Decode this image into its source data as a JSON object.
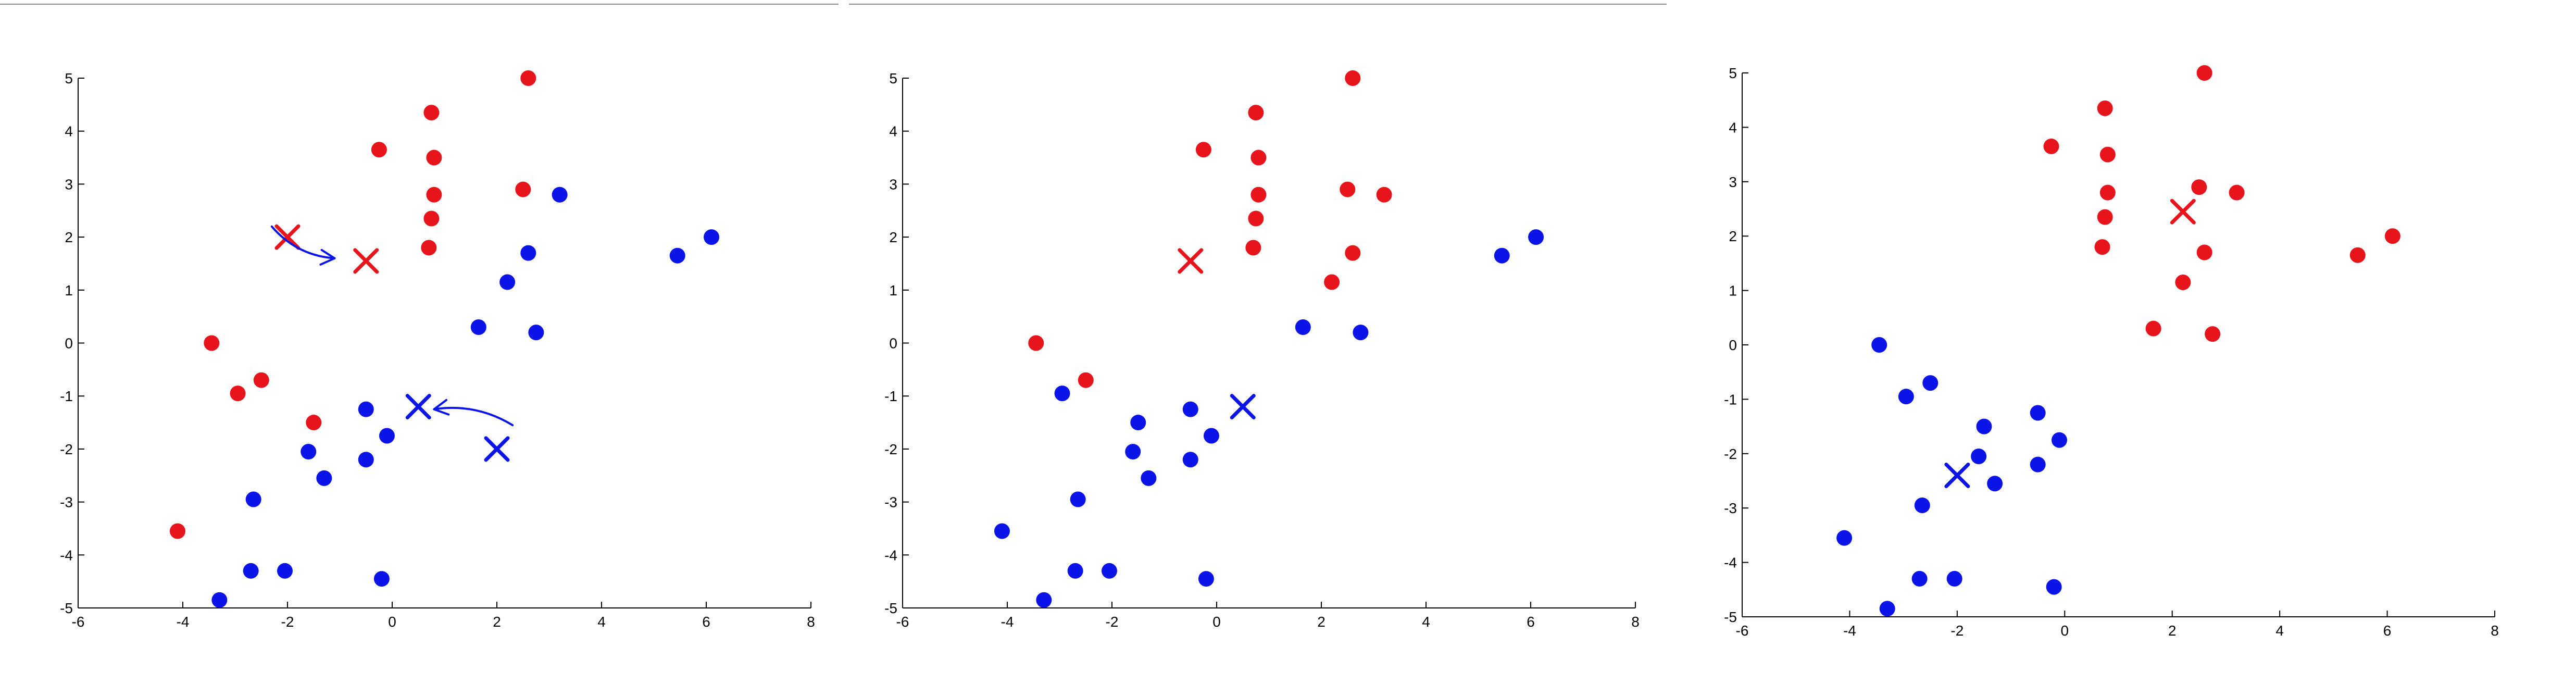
{
  "chart_data": [
    {
      "type": "scatter",
      "title": "",
      "xlabel": "",
      "ylabel": "",
      "xlim": [
        -6,
        8
      ],
      "ylim": [
        -5,
        5
      ],
      "xticks": [
        -6,
        -4,
        -2,
        0,
        2,
        4,
        6,
        8
      ],
      "yticks": [
        -5,
        -4,
        -3,
        -2,
        -1,
        0,
        1,
        2,
        3,
        4,
        5
      ],
      "grid": false,
      "series": [
        {
          "color": "#e8141b",
          "marker": "circle",
          "points": [
            [
              2.6,
              5.0
            ],
            [
              0.75,
              4.35
            ],
            [
              -0.25,
              3.65
            ],
            [
              0.8,
              3.5
            ],
            [
              0.8,
              2.8
            ],
            [
              2.5,
              2.9
            ],
            [
              0.75,
              2.35
            ],
            [
              0.7,
              1.8
            ],
            [
              -3.45,
              0.0
            ],
            [
              -2.95,
              -0.95
            ],
            [
              -2.5,
              -0.7
            ],
            [
              -1.5,
              -1.5
            ],
            [
              -4.1,
              -3.55
            ]
          ]
        },
        {
          "color": "#0a14e8",
          "marker": "circle",
          "points": [
            [
              3.2,
              2.8
            ],
            [
              6.1,
              2.0
            ],
            [
              5.45,
              1.65
            ],
            [
              2.6,
              1.7
            ],
            [
              2.2,
              1.15
            ],
            [
              1.65,
              0.3
            ],
            [
              2.75,
              0.2
            ],
            [
              -0.5,
              -1.25
            ],
            [
              -0.1,
              -1.75
            ],
            [
              -1.6,
              -2.05
            ],
            [
              -0.5,
              -2.2
            ],
            [
              -1.3,
              -2.55
            ],
            [
              -2.65,
              -2.95
            ],
            [
              -2.7,
              -4.3
            ],
            [
              -2.05,
              -4.3
            ],
            [
              -0.2,
              -4.45
            ],
            [
              -3.3,
              -4.85
            ]
          ]
        }
      ],
      "centroids": [
        {
          "color": "#e8141b",
          "x": -2.0,
          "y": 2.0
        },
        {
          "color": "#e8141b",
          "x": -0.5,
          "y": 1.55
        },
        {
          "color": "#0a14e8",
          "x": 0.5,
          "y": -1.2
        },
        {
          "color": "#0a14e8",
          "x": 2.0,
          "y": -2.0
        }
      ],
      "arrows": [
        {
          "color": "#0a14e8",
          "from": [
            -2.3,
            2.2
          ],
          "to": [
            -1.1,
            1.6
          ]
        },
        {
          "color": "#0a14e8",
          "from": [
            2.3,
            -1.55
          ],
          "to": [
            0.8,
            -1.25
          ]
        }
      ]
    },
    {
      "type": "scatter",
      "title": "",
      "xlabel": "",
      "ylabel": "",
      "xlim": [
        -6,
        8
      ],
      "ylim": [
        -5,
        5
      ],
      "xticks": [
        -6,
        -4,
        -2,
        0,
        2,
        4,
        6,
        8
      ],
      "yticks": [
        -5,
        -4,
        -3,
        -2,
        -1,
        0,
        1,
        2,
        3,
        4,
        5
      ],
      "grid": false,
      "series": [
        {
          "color": "#e8141b",
          "marker": "circle",
          "points": [
            [
              2.6,
              5.0
            ],
            [
              0.75,
              4.35
            ],
            [
              -0.25,
              3.65
            ],
            [
              0.8,
              3.5
            ],
            [
              0.8,
              2.8
            ],
            [
              2.5,
              2.9
            ],
            [
              3.2,
              2.8
            ],
            [
              0.75,
              2.35
            ],
            [
              0.7,
              1.8
            ],
            [
              2.6,
              1.7
            ],
            [
              2.2,
              1.15
            ],
            [
              -3.45,
              0.0
            ],
            [
              -2.5,
              -0.7
            ]
          ]
        },
        {
          "color": "#0a14e8",
          "marker": "circle",
          "points": [
            [
              6.1,
              2.0
            ],
            [
              5.45,
              1.65
            ],
            [
              1.65,
              0.3
            ],
            [
              2.75,
              0.2
            ],
            [
              -2.95,
              -0.95
            ],
            [
              -0.5,
              -1.25
            ],
            [
              -1.5,
              -1.5
            ],
            [
              -0.1,
              -1.75
            ],
            [
              -1.6,
              -2.05
            ],
            [
              -0.5,
              -2.2
            ],
            [
              -1.3,
              -2.55
            ],
            [
              -2.65,
              -2.95
            ],
            [
              -4.1,
              -3.55
            ],
            [
              -2.7,
              -4.3
            ],
            [
              -2.05,
              -4.3
            ],
            [
              -0.2,
              -4.45
            ],
            [
              -3.3,
              -4.85
            ]
          ]
        }
      ],
      "centroids": [
        {
          "color": "#e8141b",
          "x": -0.5,
          "y": 1.55
        },
        {
          "color": "#0a14e8",
          "x": 0.5,
          "y": -1.2
        }
      ],
      "arrows": []
    },
    {
      "type": "scatter",
      "title": "",
      "xlabel": "",
      "ylabel": "",
      "xlim": [
        -6,
        8
      ],
      "ylim": [
        -5,
        5
      ],
      "xticks": [
        -6,
        -4,
        -2,
        0,
        2,
        4,
        6,
        8
      ],
      "yticks": [
        -5,
        -4,
        -3,
        -2,
        -1,
        0,
        1,
        2,
        3,
        4,
        5
      ],
      "grid": false,
      "series": [
        {
          "color": "#e8141b",
          "marker": "circle",
          "points": [
            [
              2.6,
              5.0
            ],
            [
              0.75,
              4.35
            ],
            [
              -0.25,
              3.65
            ],
            [
              0.8,
              3.5
            ],
            [
              0.8,
              2.8
            ],
            [
              2.5,
              2.9
            ],
            [
              3.2,
              2.8
            ],
            [
              0.75,
              2.35
            ],
            [
              0.7,
              1.8
            ],
            [
              2.6,
              1.7
            ],
            [
              2.2,
              1.15
            ],
            [
              6.1,
              2.0
            ],
            [
              5.45,
              1.65
            ],
            [
              1.65,
              0.3
            ],
            [
              2.75,
              0.2
            ]
          ]
        },
        {
          "color": "#0a14e8",
          "marker": "circle",
          "points": [
            [
              -3.45,
              0.0
            ],
            [
              -2.95,
              -0.95
            ],
            [
              -2.5,
              -0.7
            ],
            [
              -0.5,
              -1.25
            ],
            [
              -1.5,
              -1.5
            ],
            [
              -0.1,
              -1.75
            ],
            [
              -1.6,
              -2.05
            ],
            [
              -0.5,
              -2.2
            ],
            [
              -1.3,
              -2.55
            ],
            [
              -2.65,
              -2.95
            ],
            [
              -4.1,
              -3.55
            ],
            [
              -2.7,
              -4.3
            ],
            [
              -2.05,
              -4.3
            ],
            [
              -0.2,
              -4.45
            ],
            [
              -3.3,
              -4.85
            ]
          ]
        }
      ],
      "centroids": [
        {
          "color": "#e8141b",
          "x": 2.2,
          "y": 2.45
        },
        {
          "color": "#0a14e8",
          "x": -2.0,
          "y": -2.4
        }
      ],
      "arrows": []
    }
  ]
}
